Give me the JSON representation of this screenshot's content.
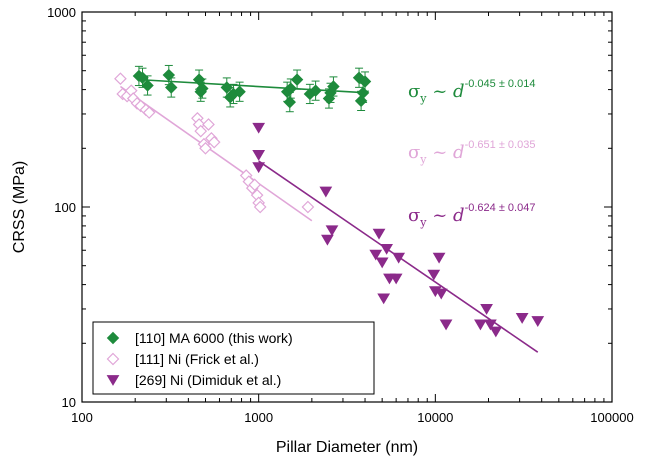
{
  "chart_data": {
    "type": "scatter",
    "title": "",
    "xlabel": "Pillar Diameter (nm)",
    "ylabel": "CRSS (MPa)",
    "xscale": "log",
    "yscale": "log",
    "xlim": [
      100,
      100000
    ],
    "ylim": [
      10,
      1000
    ],
    "xticks": [
      100,
      1000,
      10000,
      100000
    ],
    "xtick_labels": [
      "100",
      "1000",
      "10000",
      "100000"
    ],
    "yticks": [
      10,
      100,
      1000
    ],
    "ytick_labels": [
      "10",
      "100",
      "1000"
    ],
    "grid": false,
    "legend_position": "bottom-left",
    "series": [
      {
        "name": "[110] MA 6000 (this work)",
        "color": "#1e8b3c",
        "marker": "diamond-filled",
        "points": [
          [
            210,
            470
          ],
          [
            220,
            460
          ],
          [
            235,
            420
          ],
          [
            310,
            475
          ],
          [
            320,
            410
          ],
          [
            460,
            450
          ],
          [
            470,
            390
          ],
          [
            480,
            405
          ],
          [
            660,
            410
          ],
          [
            690,
            365
          ],
          [
            720,
            380
          ],
          [
            780,
            390
          ],
          [
            1450,
            390
          ],
          [
            1500,
            345
          ],
          [
            1520,
            405
          ],
          [
            1650,
            450
          ],
          [
            1950,
            380
          ],
          [
            2100,
            395
          ],
          [
            2500,
            360
          ],
          [
            2550,
            385
          ],
          [
            2650,
            415
          ],
          [
            3700,
            460
          ],
          [
            3800,
            350
          ],
          [
            3900,
            385
          ],
          [
            4000,
            440
          ]
        ],
        "fit": {
          "x": [
            210,
            4100
          ],
          "y": [
            450,
            385
          ]
        },
        "error_bars": true
      },
      {
        "name": "[111] Ni (Frick et al.)",
        "color": "#e0a6d8",
        "marker": "diamond-open",
        "points": [
          [
            165,
            455
          ],
          [
            170,
            380
          ],
          [
            180,
            370
          ],
          [
            190,
            395
          ],
          [
            195,
            360
          ],
          [
            205,
            340
          ],
          [
            215,
            330
          ],
          [
            230,
            315
          ],
          [
            240,
            305
          ],
          [
            450,
            285
          ],
          [
            460,
            265
          ],
          [
            470,
            245
          ],
          [
            490,
            210
          ],
          [
            500,
            200
          ],
          [
            520,
            265
          ],
          [
            540,
            225
          ],
          [
            560,
            215
          ],
          [
            850,
            145
          ],
          [
            880,
            135
          ],
          [
            920,
            125
          ],
          [
            950,
            130
          ],
          [
            980,
            115
          ],
          [
            1000,
            105
          ],
          [
            1020,
            100
          ],
          [
            1900,
            100
          ]
        ],
        "fit": {
          "x": [
            165,
            2000
          ],
          "y": [
            415,
            85
          ]
        }
      },
      {
        "name": "[269] Ni (Dimiduk et al.)",
        "color": "#8b2a8a",
        "marker": "triangle-down-filled",
        "points": [
          [
            1000,
            255
          ],
          [
            1000,
            185
          ],
          [
            1000,
            160
          ],
          [
            2400,
            120
          ],
          [
            2450,
            68
          ],
          [
            2600,
            76
          ],
          [
            4600,
            57
          ],
          [
            4800,
            73
          ],
          [
            5000,
            52
          ],
          [
            5100,
            34
          ],
          [
            5300,
            61
          ],
          [
            5500,
            43
          ],
          [
            6000,
            43
          ],
          [
            6200,
            55
          ],
          [
            9800,
            45
          ],
          [
            10000,
            37
          ],
          [
            10500,
            55
          ],
          [
            10800,
            36
          ],
          [
            11500,
            25
          ],
          [
            18000,
            25
          ],
          [
            19500,
            30
          ],
          [
            20500,
            25
          ],
          [
            22000,
            23
          ],
          [
            31000,
            27
          ],
          [
            38000,
            26
          ]
        ],
        "fit": {
          "x": [
            1000,
            38000
          ],
          "y": [
            172,
            18
          ]
        }
      }
    ],
    "annotations": [
      {
        "color": "#1e8b3c",
        "base": "σ",
        "sub": "y",
        "mid": " ~ ",
        "var": "d",
        "exponent": "-0.045 ± 0.014"
      },
      {
        "color": "#e0a6d8",
        "base": "σ",
        "sub": "y",
        "mid": " ~ ",
        "var": "d",
        "exponent": "-0.651 ± 0.035"
      },
      {
        "color": "#8b2a8a",
        "base": "σ",
        "sub": "y",
        "mid": " ~ ",
        "var": "d",
        "exponent": "-0.624 ± 0.047"
      }
    ]
  }
}
